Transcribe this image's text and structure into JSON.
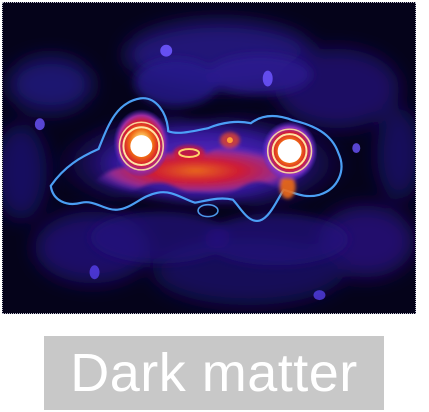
{
  "caption": {
    "text": "Dark matter"
  },
  "image": {
    "subject": "dark-matter-map",
    "palette": {
      "background": "#05031a",
      "deep_blue": "#1b0d6b",
      "blue": "#4e29d4",
      "purple": "#7a39d9",
      "magenta": "#ba2a8a",
      "red": "#d51b2e",
      "orange": "#f06b14",
      "yellow": "#ffd36b",
      "white": "#ffffff"
    }
  },
  "caption_box": {
    "background": "#c8c8c8",
    "text_color": "#ffffff"
  }
}
